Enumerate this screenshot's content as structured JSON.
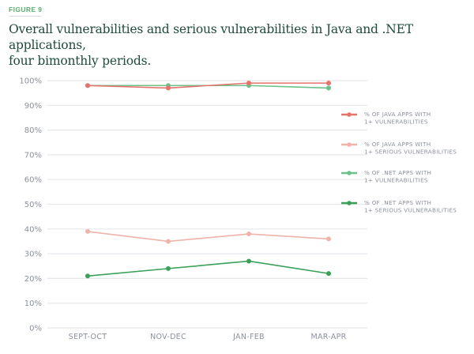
{
  "figure_label": "FIGURE 9",
  "title_line1": "Overall vulnerabilities and serious vulnerabilities in Java and .NET applications,",
  "title_line2": "four bimonthly periods.",
  "chart_data": {
    "type": "line",
    "title": "Overall vulnerabilities and serious vulnerabilities in Java and .NET applications, four bimonthly periods.",
    "xlabel": "",
    "ylabel": "",
    "categories": [
      "SEPT-OCT",
      "NOV-DEC",
      "JAN-FEB",
      "MAR-APR"
    ],
    "ylim": [
      0,
      100
    ],
    "yticks": [
      0,
      10,
      20,
      30,
      40,
      50,
      60,
      70,
      80,
      90,
      100
    ],
    "ytick_labels": [
      "0%",
      "10%",
      "20%",
      "30%",
      "40%",
      "50%",
      "60%",
      "70%",
      "80%",
      "90%",
      "100%"
    ],
    "grid": true,
    "legend_position": "right",
    "series": [
      {
        "name": "% OF JAVA APPS WITH 1+ VULNERABILITIES",
        "legend_lines": [
          "% OF JAVA APPS WITH",
          "1+ VULNERABILITIES"
        ],
        "color": "#e5736b",
        "values": [
          98,
          97,
          99,
          99
        ]
      },
      {
        "name": "% OF JAVA APPS WITH 1+ SERIOUS VULNERABILITIES",
        "legend_lines": [
          "% OF JAVA APPS WITH",
          "1+ SERIOUS VULNERABILITIES"
        ],
        "color": "#f0b3aa",
        "values": [
          39,
          35,
          38,
          36
        ]
      },
      {
        "name": "% OF .NET APPS WITH 1+ VULNERABILITIES",
        "legend_lines": [
          "% OF .NET APPS WITH",
          "1+ VULNERABILITIES"
        ],
        "color": "#6cc08a",
        "values": [
          98,
          98,
          98,
          97
        ]
      },
      {
        "name": "% OF .NET APPS WITH 1+ SERIOUS VULNERABILITIES",
        "legend_lines": [
          "% OF .NET APPS WITH",
          "1+ SERIOUS VULNERABILITIES"
        ],
        "color": "#3aa05a",
        "values": [
          21,
          24,
          27,
          22
        ]
      }
    ]
  }
}
